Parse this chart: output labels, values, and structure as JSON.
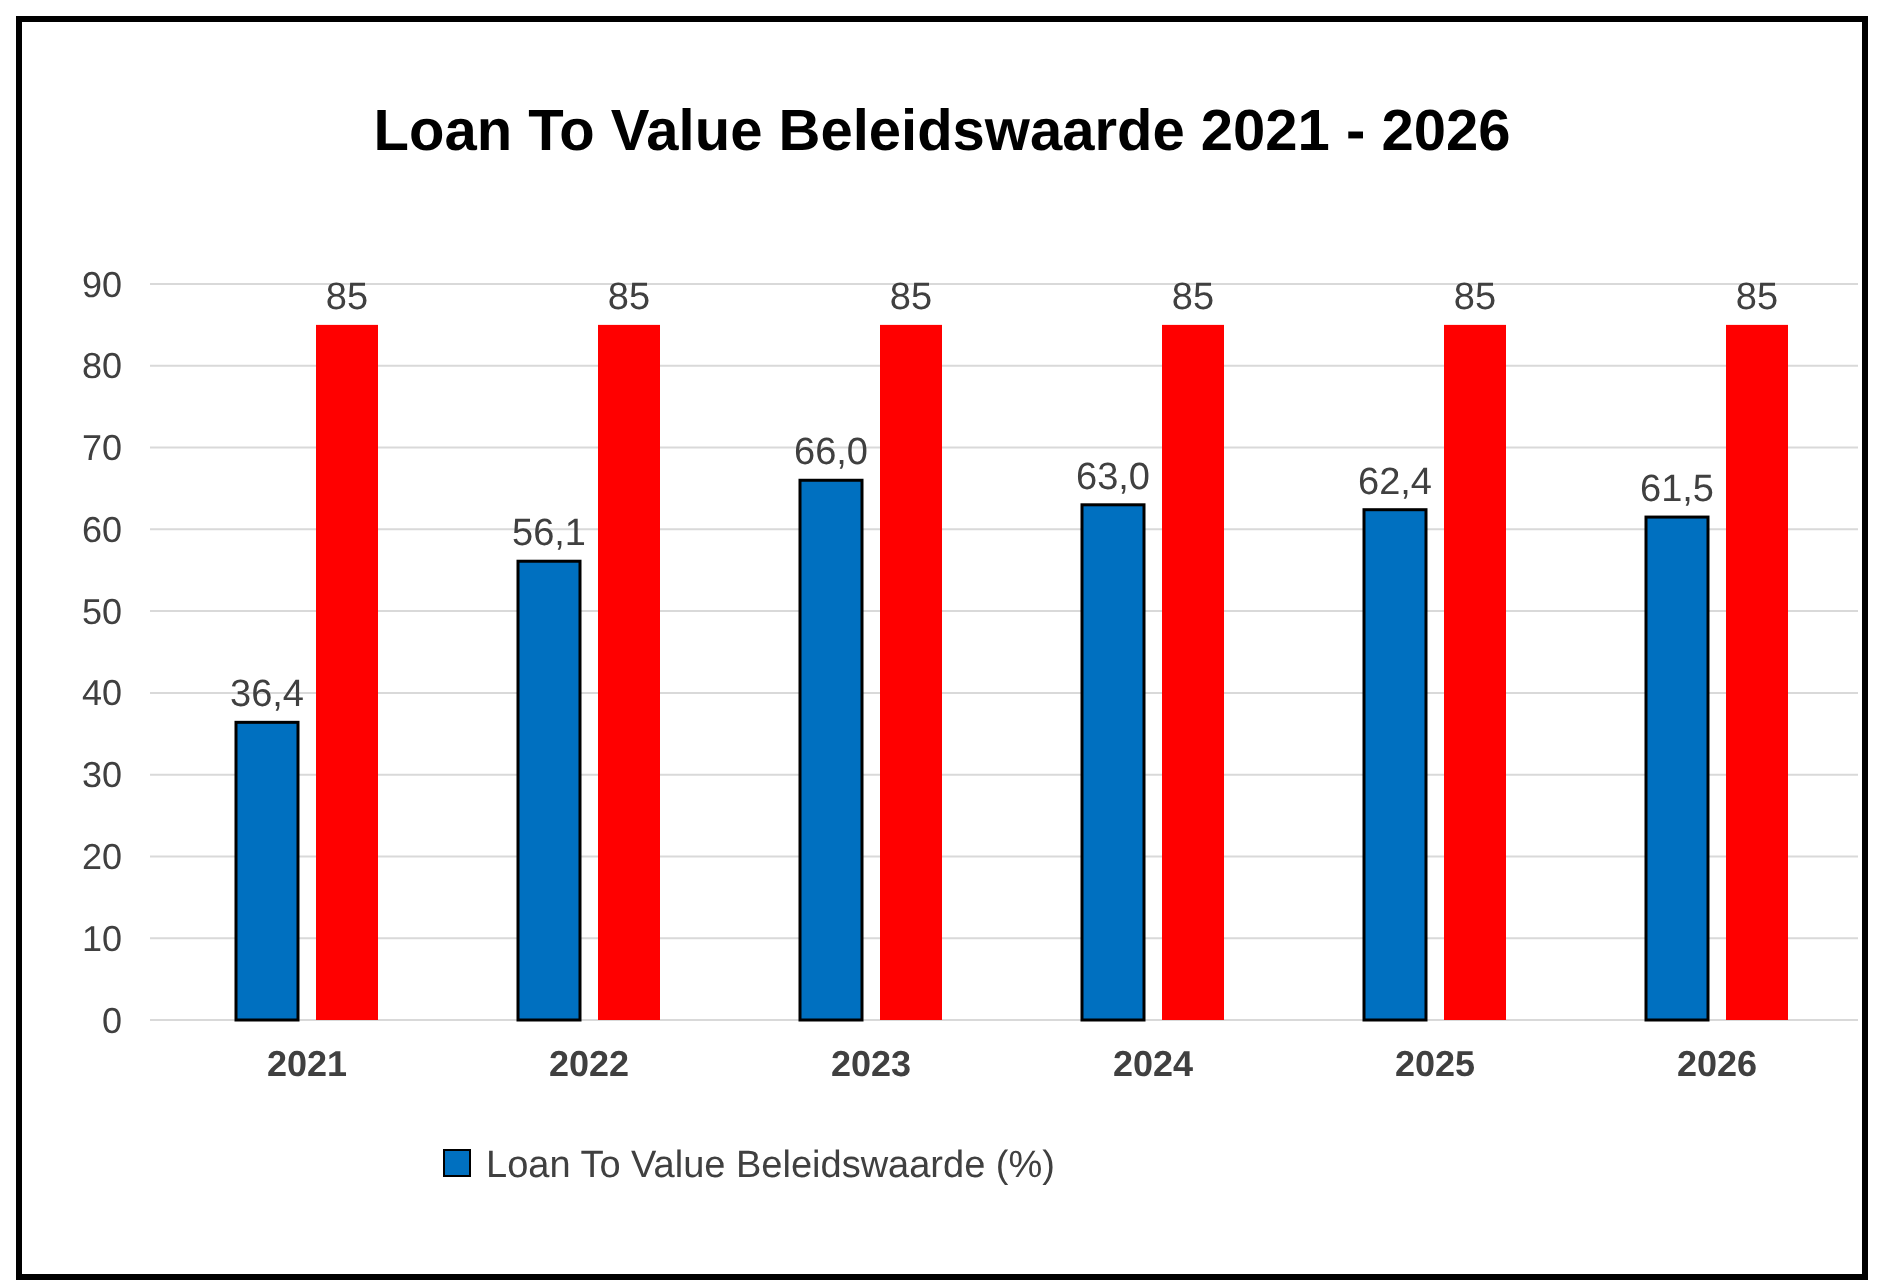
{
  "chart_data": {
    "type": "bar",
    "title": "Loan To Value Beleidswaarde 2021 - 2026",
    "categories": [
      "2021",
      "2022",
      "2023",
      "2024",
      "2025",
      "2026"
    ],
    "series": [
      {
        "name": "Loan To Value  Beleidswaarde (%)",
        "color": "#0070c0",
        "values": [
          36.4,
          56.1,
          66.0,
          63.0,
          62.4,
          61.5
        ],
        "value_labels": [
          "36,4",
          "56,1",
          "66,0",
          "63,0",
          "62,4",
          "61,5"
        ]
      },
      {
        "color": "#ff0000",
        "values": [
          85,
          85,
          85,
          85,
          85,
          85
        ],
        "value_labels": [
          "85",
          "85",
          "85",
          "85",
          "85",
          "85"
        ]
      }
    ],
    "ylim": [
      0,
      90
    ],
    "yticks": [
      0,
      10,
      20,
      30,
      40,
      50,
      60,
      70,
      80,
      90
    ],
    "grid": "y",
    "legend": "bottom"
  }
}
